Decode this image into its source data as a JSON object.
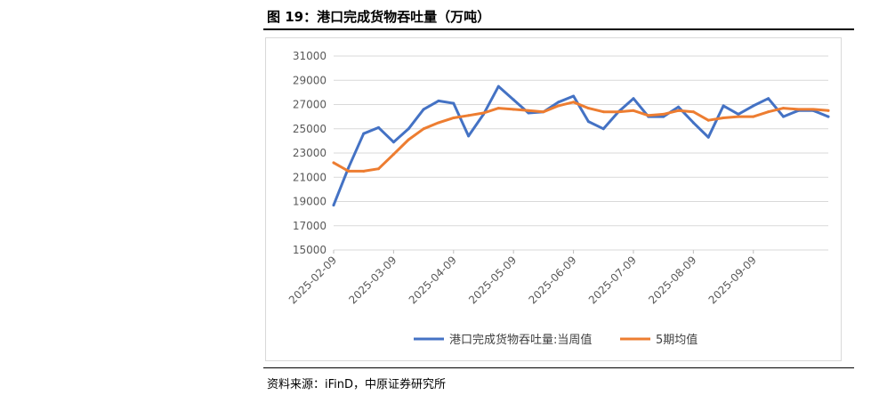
{
  "header": {
    "title": "图 19：港口完成货物吞吐量（万吨）"
  },
  "footer": {
    "source": "资料来源：iFinD，中原证券研究所"
  },
  "chart_data": {
    "type": "line",
    "title": "",
    "xlabel": "",
    "ylabel": "",
    "ylim": [
      15000,
      31000
    ],
    "yticks": [
      15000,
      17000,
      19000,
      21000,
      23000,
      25000,
      27000,
      29000,
      31000
    ],
    "xtick_labels": [
      "2025-02-09",
      "2025-03-09",
      "2025-04-09",
      "2025-05-09",
      "2025-06-09",
      "2025-07-09",
      "2025-08-09",
      "2025-09-09"
    ],
    "xtick_indices": [
      0,
      4,
      8,
      12,
      16,
      20,
      24,
      28
    ],
    "grid": true,
    "legend_position": "bottom",
    "series": [
      {
        "name": "港口完成货物吞吐量:当周值",
        "color": "#4472C4",
        "values": [
          18700,
          21800,
          24600,
          25100,
          23900,
          25000,
          26600,
          27300,
          27100,
          24400,
          26200,
          28500,
          27400,
          26300,
          26400,
          27200,
          27700,
          25600,
          25000,
          26400,
          27500,
          26000,
          26000,
          26800,
          25500,
          24300,
          26900,
          26200,
          26900,
          27500,
          26000,
          26500,
          26500,
          26000
        ]
      },
      {
        "name": "5期均值",
        "color": "#ED7D31",
        "values": [
          22200,
          21500,
          21500,
          21700,
          22900,
          24100,
          25000,
          25500,
          25900,
          26100,
          26300,
          26700,
          26600,
          26500,
          26400,
          26900,
          27200,
          26700,
          26400,
          26400,
          26500,
          26100,
          26200,
          26500,
          26400,
          25700,
          25900,
          26000,
          26000,
          26400,
          26700,
          26600,
          26600,
          26500
        ]
      }
    ]
  }
}
